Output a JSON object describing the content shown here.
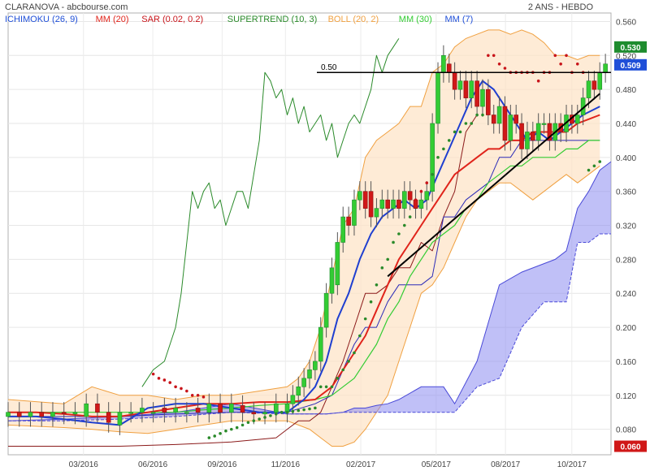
{
  "header": {
    "source": "CLARANOVA - abcbourse.com",
    "period": "2 ANS - HEBDO"
  },
  "legend": [
    {
      "label": "ICHIMOKU (26, 9)",
      "color": "#1f4fd8"
    },
    {
      "label": "MM (20)",
      "color": "#e0241b"
    },
    {
      "label": "SAR (0.02, 0.2)",
      "color": "#c8141a"
    },
    {
      "label": "SUPERTREND (10, 3)",
      "color": "#2a8a2a"
    },
    {
      "label": "BOLL (20, 2)",
      "color": "#f0a040"
    },
    {
      "label": "MM (30)",
      "color": "#33cc33"
    },
    {
      "label": "MM (7)",
      "color": "#1f4fd8"
    }
  ],
  "price_tags": [
    {
      "text": "0.530",
      "value": 0.53,
      "color": "#1e8c2e"
    },
    {
      "text": "0.509",
      "value": 0.509,
      "color": "#1f4fd8"
    },
    {
      "text": "0.060",
      "value": 0.06,
      "color": "#d01818"
    }
  ],
  "chart_data": {
    "type": "line",
    "y_ticks": [
      "0.560",
      "0.520",
      "0.480",
      "0.440",
      "0.400",
      "0.360",
      "0.320",
      "0.280",
      "0.240",
      "0.200",
      "0.160",
      "0.120",
      "0.080"
    ],
    "ylim": [
      0.05,
      0.57
    ],
    "x_ticks": [
      "03/2016",
      "06/2016",
      "09/2016",
      "11/2016",
      "02/2017",
      "05/2017",
      "08/2017",
      "10/2017"
    ],
    "grid": true,
    "annotations": [
      {
        "text": "0.50",
        "type": "horizontal-line",
        "value": 0.5
      },
      {
        "type": "trend-line",
        "from": [
          68,
          0.26
        ],
        "to": [
          106,
          0.475
        ]
      }
    ],
    "series": [
      {
        "name": "ICHIMOKU (26, 9)",
        "kind": "cloud-upper",
        "x": [
          0,
          10,
          20,
          30,
          40,
          50,
          57,
          60,
          62,
          64,
          66,
          68,
          70,
          74,
          78,
          80,
          84,
          88,
          92,
          96,
          98,
          100,
          102,
          104,
          106,
          108
        ],
        "y": [
          0.09,
          0.092,
          0.095,
          0.1,
          0.11,
          0.098,
          0.098,
          0.1,
          0.105,
          0.105,
          0.108,
          0.11,
          0.115,
          0.13,
          0.13,
          0.11,
          0.16,
          0.25,
          0.265,
          0.275,
          0.28,
          0.29,
          0.34,
          0.36,
          0.385,
          0.395
        ]
      },
      {
        "name": "ICHIMOKU (26, 9)",
        "kind": "cloud-lower",
        "x": [
          0,
          10,
          20,
          30,
          40,
          50,
          57,
          60,
          62,
          64,
          66,
          68,
          70,
          74,
          78,
          80,
          84,
          88,
          92,
          96,
          98,
          100,
          102,
          104,
          106,
          108
        ],
        "y": [
          0.09,
          0.09,
          0.092,
          0.095,
          0.1,
          0.098,
          0.098,
          0.1,
          0.1,
          0.1,
          0.1,
          0.1,
          0.1,
          0.1,
          0.1,
          0.1,
          0.13,
          0.14,
          0.2,
          0.23,
          0.23,
          0.23,
          0.3,
          0.3,
          0.31,
          0.31
        ]
      },
      {
        "name": "SUPERTREND (10, 3)",
        "x": [
          24,
          25,
          26,
          28,
          30,
          31,
          32,
          33,
          34,
          35,
          36,
          37,
          38,
          39,
          40,
          41,
          42,
          43,
          44,
          45,
          46,
          47,
          48,
          49,
          50,
          51,
          52,
          53,
          54,
          55,
          56,
          57,
          58,
          59,
          60,
          61,
          62,
          63,
          64,
          65,
          66,
          67,
          68,
          69,
          70
        ],
        "y": [
          0.13,
          0.14,
          0.15,
          0.16,
          0.2,
          0.24,
          0.3,
          0.36,
          0.34,
          0.36,
          0.37,
          0.34,
          0.35,
          0.32,
          0.34,
          0.36,
          0.36,
          0.34,
          0.38,
          0.42,
          0.5,
          0.49,
          0.47,
          0.48,
          0.45,
          0.47,
          0.44,
          0.46,
          0.43,
          0.44,
          0.45,
          0.42,
          0.44,
          0.4,
          0.42,
          0.44,
          0.45,
          0.44,
          0.46,
          0.48,
          0.52,
          0.5,
          0.52,
          0.53,
          0.54
        ]
      },
      {
        "name": "BOLL (20, 2)",
        "kind": "upper",
        "x": [
          0,
          10,
          15,
          20,
          25,
          30,
          35,
          40,
          45,
          50,
          52,
          54,
          56,
          58,
          60,
          62,
          64,
          66,
          68,
          70,
          72,
          74,
          76,
          78,
          80,
          82,
          84,
          86,
          88,
          90,
          92,
          94,
          96,
          98,
          100,
          102,
          104,
          106
        ],
        "y": [
          0.115,
          0.11,
          0.13,
          0.12,
          0.12,
          0.115,
          0.12,
          0.12,
          0.125,
          0.13,
          0.14,
          0.16,
          0.2,
          0.26,
          0.32,
          0.34,
          0.4,
          0.42,
          0.43,
          0.44,
          0.46,
          0.46,
          0.5,
          0.51,
          0.53,
          0.54,
          0.545,
          0.55,
          0.55,
          0.545,
          0.55,
          0.545,
          0.535,
          0.52,
          0.52,
          0.515,
          0.52,
          0.52
        ]
      },
      {
        "name": "BOLL (20, 2)",
        "kind": "lower",
        "x": [
          0,
          10,
          15,
          20,
          25,
          30,
          35,
          40,
          45,
          50,
          52,
          54,
          56,
          58,
          60,
          62,
          64,
          66,
          68,
          70,
          72,
          74,
          76,
          78,
          80,
          82,
          84,
          86,
          88,
          90,
          92,
          94,
          96,
          98,
          100,
          102,
          104,
          106
        ],
        "y": [
          0.085,
          0.082,
          0.08,
          0.077,
          0.075,
          0.08,
          0.085,
          0.09,
          0.09,
          0.09,
          0.085,
          0.08,
          0.07,
          0.06,
          0.06,
          0.065,
          0.08,
          0.1,
          0.12,
          0.16,
          0.2,
          0.24,
          0.25,
          0.27,
          0.3,
          0.33,
          0.35,
          0.36,
          0.37,
          0.37,
          0.36,
          0.35,
          0.36,
          0.37,
          0.38,
          0.37,
          0.38,
          0.39
        ]
      },
      {
        "name": "MM (20)",
        "x": [
          0,
          5,
          10,
          15,
          20,
          25,
          30,
          35,
          40,
          45,
          50,
          55,
          58,
          60,
          62,
          64,
          66,
          68,
          70,
          72,
          74,
          76,
          78,
          80,
          82,
          84,
          86,
          88,
          90,
          92,
          94,
          96,
          98,
          100,
          102,
          104,
          106
        ],
        "y": [
          0.1,
          0.1,
          0.098,
          0.095,
          0.095,
          0.1,
          0.105,
          0.11,
          0.11,
          0.112,
          0.112,
          0.115,
          0.13,
          0.15,
          0.17,
          0.19,
          0.22,
          0.25,
          0.28,
          0.3,
          0.32,
          0.34,
          0.36,
          0.38,
          0.39,
          0.4,
          0.41,
          0.41,
          0.42,
          0.42,
          0.43,
          0.43,
          0.43,
          0.43,
          0.44,
          0.445,
          0.45
        ]
      },
      {
        "name": "MM (30)",
        "x": [
          0,
          5,
          10,
          15,
          20,
          25,
          30,
          35,
          40,
          45,
          50,
          55,
          58,
          60,
          62,
          64,
          66,
          68,
          70,
          72,
          74,
          76,
          78,
          80,
          82,
          84,
          86,
          88,
          90,
          92,
          94,
          96,
          98,
          100,
          102,
          104,
          106
        ],
        "y": [
          0.1,
          0.1,
          0.1,
          0.1,
          0.1,
          0.1,
          0.1,
          0.103,
          0.105,
          0.108,
          0.11,
          0.115,
          0.12,
          0.13,
          0.14,
          0.16,
          0.18,
          0.21,
          0.23,
          0.26,
          0.28,
          0.3,
          0.31,
          0.32,
          0.34,
          0.35,
          0.37,
          0.38,
          0.39,
          0.39,
          0.4,
          0.4,
          0.4,
          0.41,
          0.41,
          0.42,
          0.42
        ]
      },
      {
        "name": "MM (7)",
        "x": [
          0,
          5,
          10,
          15,
          20,
          25,
          30,
          35,
          40,
          45,
          50,
          53,
          55,
          57,
          59,
          61,
          63,
          65,
          67,
          69,
          71,
          73,
          75,
          77,
          79,
          81,
          83,
          85,
          87,
          89,
          91,
          93,
          95,
          97,
          99,
          101,
          103,
          106
        ],
        "y": [
          0.095,
          0.095,
          0.092,
          0.088,
          0.085,
          0.105,
          0.11,
          0.11,
          0.105,
          0.1,
          0.1,
          0.115,
          0.13,
          0.16,
          0.21,
          0.24,
          0.28,
          0.31,
          0.33,
          0.34,
          0.35,
          0.34,
          0.35,
          0.38,
          0.41,
          0.44,
          0.47,
          0.49,
          0.48,
          0.46,
          0.44,
          0.42,
          0.43,
          0.42,
          0.43,
          0.44,
          0.45,
          0.46
        ]
      },
      {
        "name": "ICHIMOKU (26, 9)",
        "kind": "kijun",
        "x": [
          0,
          10,
          20,
          30,
          40,
          50,
          55,
          58,
          60,
          62,
          64,
          66,
          68,
          70,
          72,
          74,
          76,
          78,
          80,
          82,
          84,
          86,
          88,
          90,
          92,
          94,
          96,
          98,
          100,
          102,
          104,
          106
        ],
        "y": [
          0.095,
          0.095,
          0.095,
          0.098,
          0.1,
          0.1,
          0.11,
          0.12,
          0.15,
          0.18,
          0.2,
          0.2,
          0.23,
          0.25,
          0.25,
          0.25,
          0.26,
          0.33,
          0.33,
          0.35,
          0.36,
          0.37,
          0.4,
          0.4,
          0.42,
          0.42,
          0.42,
          0.42,
          0.42,
          0.42,
          0.42,
          0.42
        ]
      },
      {
        "name": "ICHIMOKU (26, 9)",
        "kind": "chikou",
        "x": [
          0,
          10,
          20,
          30,
          40,
          48,
          50,
          52,
          54,
          56,
          58,
          60,
          62,
          64,
          66,
          68,
          70,
          72,
          74,
          76,
          78,
          80,
          82,
          84
        ],
        "y": [
          0.06,
          0.06,
          0.06,
          0.062,
          0.065,
          0.07,
          0.08,
          0.09,
          0.09,
          0.1,
          0.13,
          0.16,
          0.2,
          0.24,
          0.24,
          0.25,
          0.27,
          0.27,
          0.3,
          0.29,
          0.33,
          0.36,
          0.43,
          0.45
        ]
      },
      {
        "name": "SAR (0.02, 0.2)",
        "kind": "dots",
        "x": [
          26,
          27,
          28,
          29,
          30,
          31,
          32,
          33,
          34,
          35,
          36,
          37,
          38,
          39,
          40,
          41,
          42,
          43,
          44,
          45,
          46,
          47,
          48,
          49,
          50,
          51,
          52,
          53,
          54,
          55,
          56,
          57,
          58,
          59,
          60,
          61,
          62,
          63,
          64,
          65,
          66,
          67,
          68,
          69,
          70,
          71,
          72,
          73,
          74,
          75,
          76,
          77,
          78,
          79,
          80,
          81,
          82,
          83,
          84,
          85,
          86,
          87,
          88,
          89,
          90,
          91,
          92,
          93,
          94,
          95,
          96,
          97,
          98,
          99,
          100,
          101,
          102,
          103,
          104,
          105,
          106
        ],
        "y": [
          0.145,
          0.14,
          0.138,
          0.135,
          0.13,
          0.128,
          0.125,
          0.12,
          0.12,
          0.118,
          0.07,
          0.072,
          0.075,
          0.078,
          0.08,
          0.082,
          0.085,
          0.088,
          0.09,
          0.092,
          0.094,
          0.096,
          0.098,
          0.1,
          0.1,
          0.101,
          0.102,
          0.103,
          0.104,
          0.105,
          0.13,
          0.13,
          0.13,
          0.14,
          0.15,
          0.16,
          0.17,
          0.19,
          0.21,
          0.23,
          0.25,
          0.27,
          0.28,
          0.3,
          0.31,
          0.32,
          0.33,
          0.35,
          0.36,
          0.37,
          0.38,
          0.4,
          0.41,
          0.42,
          0.43,
          0.43,
          0.44,
          0.44,
          0.45,
          0.45,
          0.52,
          0.52,
          0.51,
          0.505,
          0.5,
          0.5,
          0.5,
          0.5,
          0.5,
          0.49,
          0.5,
          0.5,
          0.52,
          0.51,
          0.52,
          0.5,
          0.51,
          0.5,
          0.385,
          0.39,
          0.395
        ]
      }
    ],
    "candles": {
      "x": [
        0,
        2,
        4,
        6,
        8,
        10,
        12,
        14,
        16,
        18,
        20,
        22,
        24,
        26,
        28,
        30,
        32,
        34,
        36,
        38,
        40,
        42,
        44,
        46,
        48,
        50,
        51,
        52,
        53,
        54,
        55,
        56,
        57,
        58,
        59,
        60,
        61,
        62,
        63,
        64,
        65,
        66,
        67,
        68,
        69,
        70,
        71,
        72,
        73,
        74,
        75,
        76,
        77,
        78,
        79,
        80,
        81,
        82,
        83,
        84,
        85,
        86,
        87,
        88,
        89,
        90,
        91,
        92,
        93,
        94,
        95,
        96,
        97,
        98,
        99,
        100,
        101,
        102,
        103,
        104,
        105,
        106,
        107
      ],
      "open": [
        0.095,
        0.1,
        0.095,
        0.1,
        0.095,
        0.1,
        0.098,
        0.095,
        0.11,
        0.1,
        0.085,
        0.1,
        0.1,
        0.1,
        0.105,
        0.1,
        0.1,
        0.105,
        0.1,
        0.11,
        0.1,
        0.108,
        0.1,
        0.098,
        0.1,
        0.1,
        0.11,
        0.12,
        0.13,
        0.14,
        0.15,
        0.16,
        0.2,
        0.24,
        0.25,
        0.3,
        0.33,
        0.32,
        0.35,
        0.36,
        0.36,
        0.33,
        0.34,
        0.35,
        0.34,
        0.35,
        0.34,
        0.36,
        0.35,
        0.34,
        0.35,
        0.36,
        0.44,
        0.5,
        0.51,
        0.5,
        0.48,
        0.49,
        0.47,
        0.49,
        0.46,
        0.48,
        0.45,
        0.44,
        0.46,
        0.42,
        0.45,
        0.44,
        0.41,
        0.43,
        0.42,
        0.44,
        0.44,
        0.42,
        0.44,
        0.43,
        0.45,
        0.44,
        0.45,
        0.47,
        0.49,
        0.48,
        0.5
      ],
      "close": [
        0.1,
        0.095,
        0.1,
        0.095,
        0.1,
        0.098,
        0.1,
        0.11,
        0.1,
        0.088,
        0.1,
        0.1,
        0.105,
        0.1,
        0.1,
        0.105,
        0.1,
        0.1,
        0.11,
        0.1,
        0.11,
        0.1,
        0.098,
        0.1,
        0.11,
        0.11,
        0.12,
        0.13,
        0.14,
        0.15,
        0.16,
        0.2,
        0.24,
        0.27,
        0.3,
        0.33,
        0.32,
        0.35,
        0.36,
        0.34,
        0.33,
        0.34,
        0.35,
        0.34,
        0.35,
        0.34,
        0.36,
        0.35,
        0.34,
        0.35,
        0.36,
        0.44,
        0.5,
        0.52,
        0.5,
        0.48,
        0.49,
        0.47,
        0.49,
        0.46,
        0.48,
        0.45,
        0.44,
        0.46,
        0.42,
        0.45,
        0.44,
        0.41,
        0.43,
        0.42,
        0.44,
        0.44,
        0.42,
        0.44,
        0.43,
        0.45,
        0.44,
        0.45,
        0.47,
        0.49,
        0.48,
        0.5,
        0.51
      ]
    }
  }
}
